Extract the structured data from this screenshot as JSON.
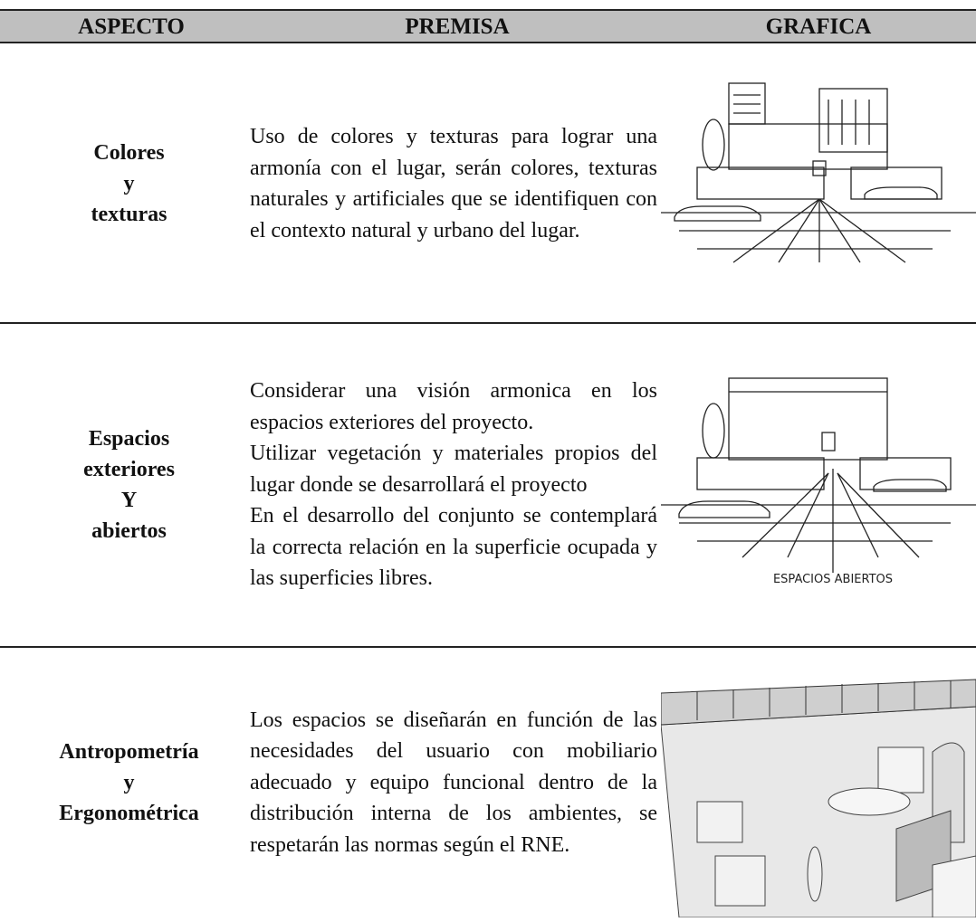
{
  "header": {
    "aspecto": "ASPECTO",
    "premisa": "PREMISA",
    "grafica": "GRAFICA"
  },
  "rows": [
    {
      "aspecto": [
        "Colores",
        "y",
        "texturas"
      ],
      "premisa": [
        "Uso de colores y texturas para lograr una armonía con el lugar, serán colores, texturas naturales y artificiales que se identifiquen con el contexto natural y urbano del lugar."
      ]
    },
    {
      "aspecto": [
        "Espacios",
        "exteriores",
        "Y",
        "abiertos"
      ],
      "premisa": [
        "Considerar una visión armonica en los espacios exteriores del proyecto.",
        "Utilizar vegetación y materiales propios del lugar donde se desarrollará el proyecto",
        "En el desarrollo del conjunto se contemplará la correcta relación en la superficie ocupada y las superficies libres."
      ],
      "caption": "ESPACIOS ABIERTOS"
    },
    {
      "aspecto": [
        "Antropometría",
        "y",
        "Ergonométrica"
      ],
      "premisa": [
        "Los espacios se diseñarán en función de las necesidades del usuario con mobiliario adecuado y equipo funcional dentro de la distribución interna de los ambientes, se respetarán las normas según el RNE."
      ]
    }
  ]
}
